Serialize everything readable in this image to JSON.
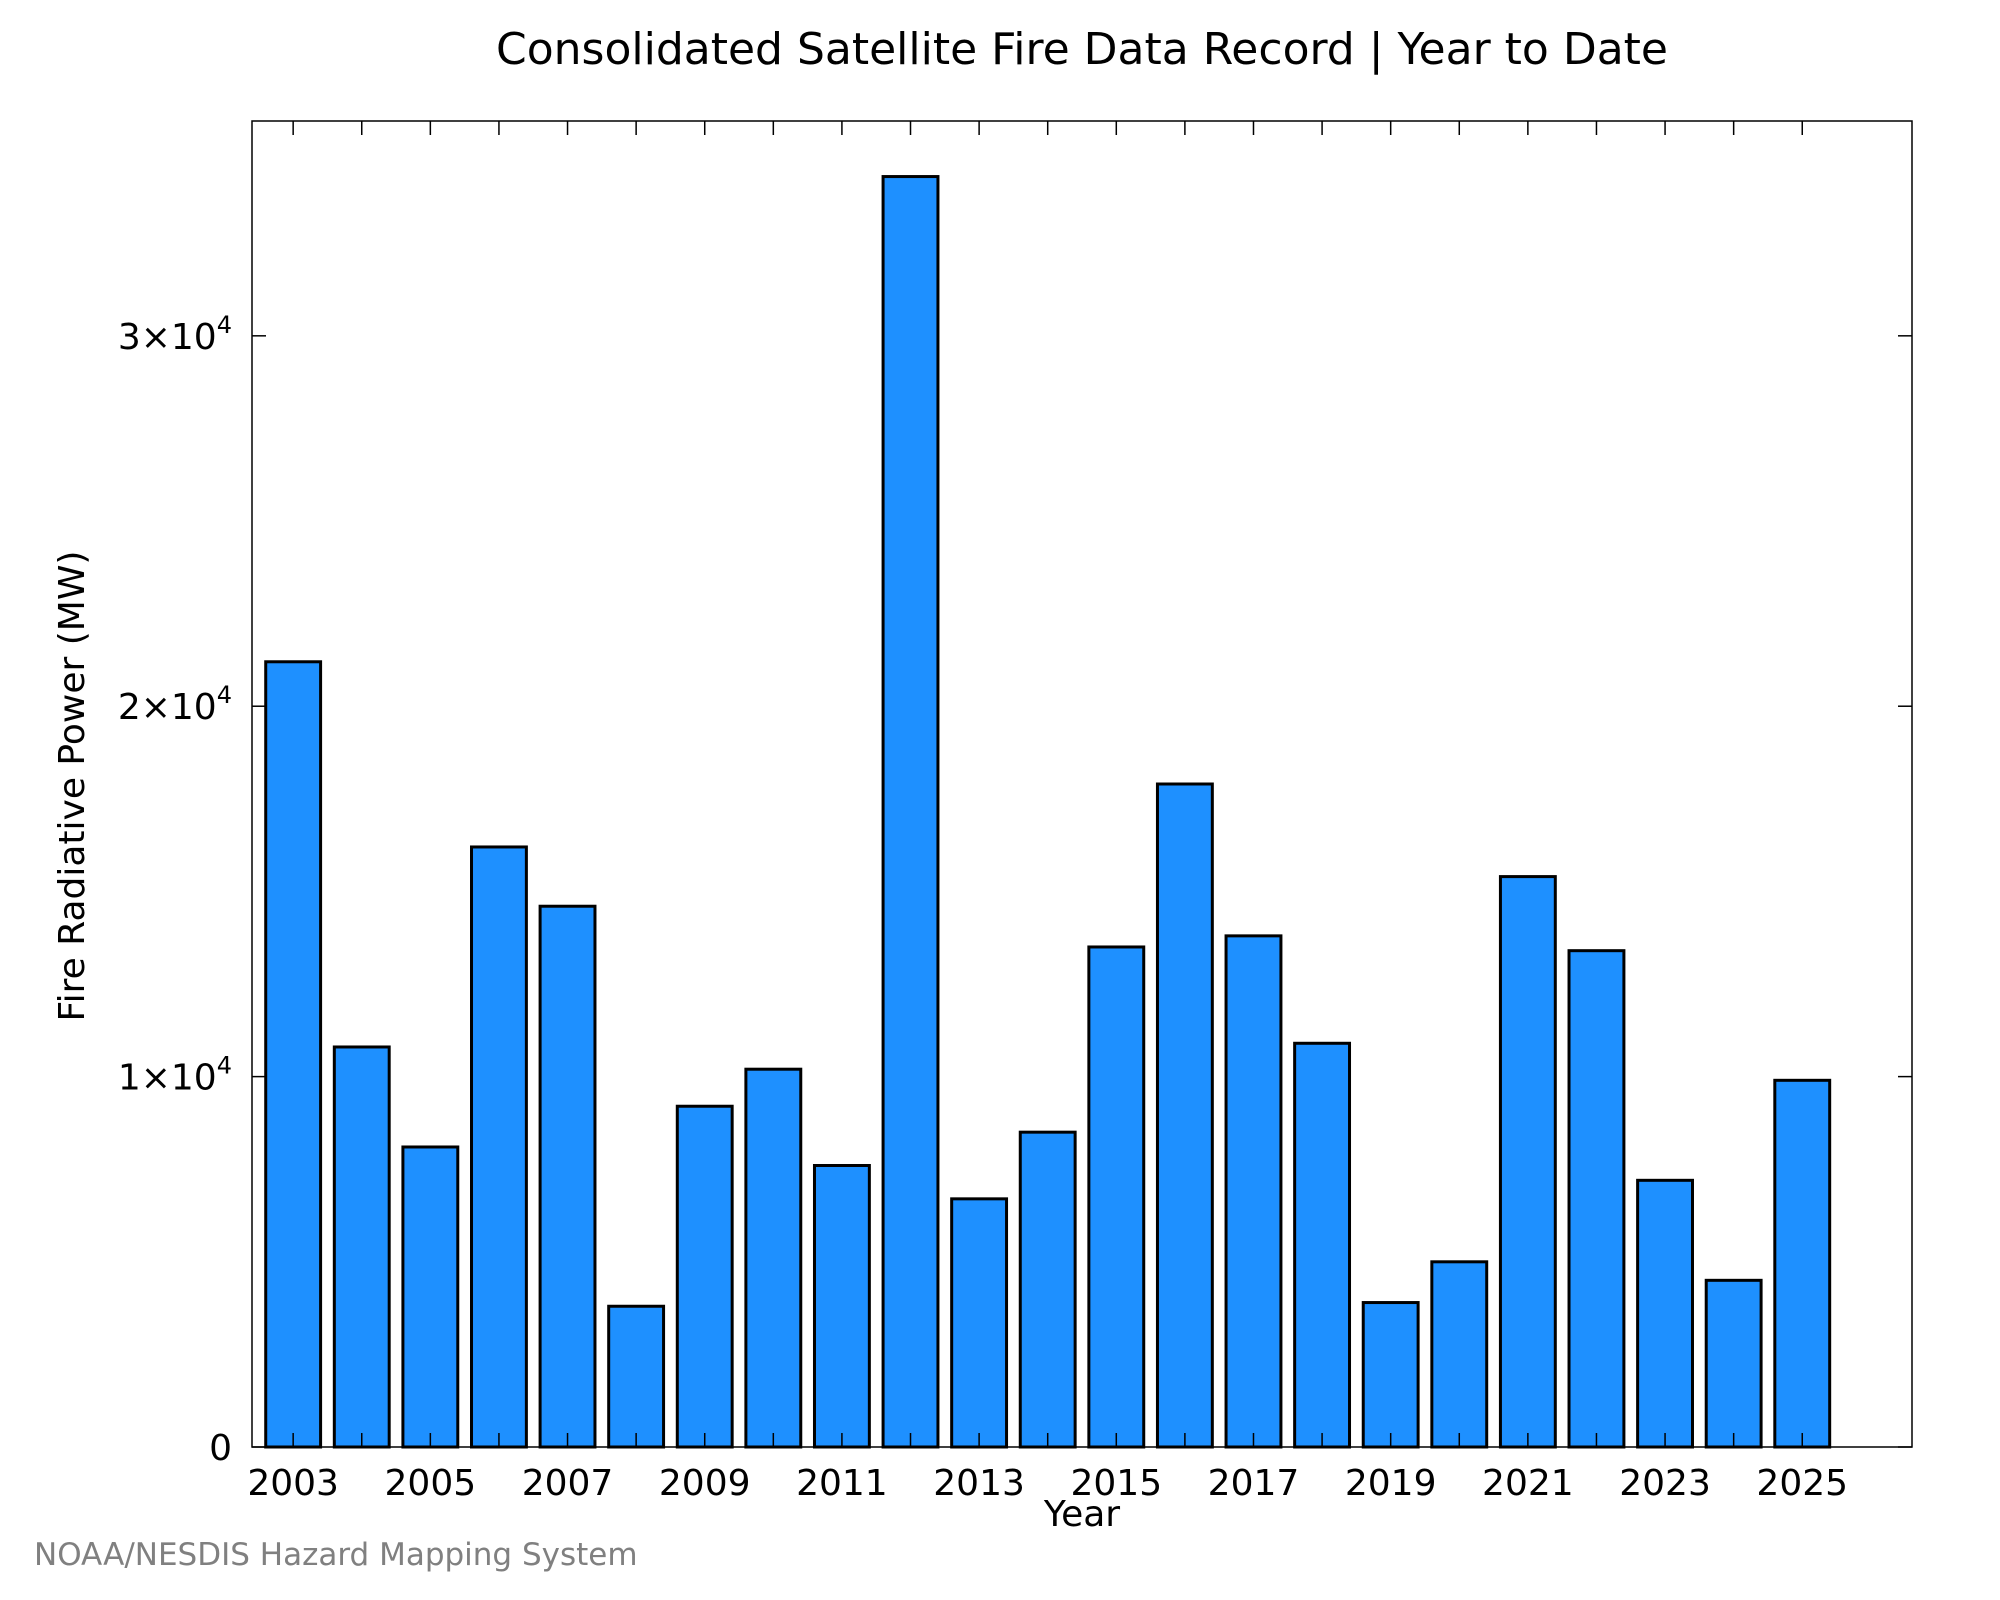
{
  "chart_data": {
    "type": "bar",
    "title": "Consolidated Satellite Fire Data Record | Year to Date",
    "xlabel": "Year",
    "ylabel": "Fire Radiative Power (MW)",
    "categories": [
      2003,
      2004,
      2005,
      2006,
      2007,
      2008,
      2009,
      2010,
      2011,
      2012,
      2013,
      2014,
      2015,
      2016,
      2017,
      2018,
      2019,
      2020,
      2021,
      2022,
      2023,
      2024,
      2025
    ],
    "values": [
      21200,
      10800,
      8100,
      16200,
      14600,
      3800,
      9200,
      10200,
      7600,
      34300,
      6700,
      8500,
      13500,
      17900,
      13800,
      10900,
      3900,
      5000,
      15400,
      13400,
      7200,
      4500,
      9900
    ],
    "x_tick_labels": [
      "2003",
      "2005",
      "2007",
      "2009",
      "2011",
      "2013",
      "2015",
      "2017",
      "2019",
      "2021",
      "2023",
      "2025"
    ],
    "y_ticks": [
      {
        "value": 0,
        "mantissa": "0",
        "exponent": ""
      },
      {
        "value": 10000,
        "mantissa": "1×10",
        "exponent": "4"
      },
      {
        "value": 20000,
        "mantissa": "2×10",
        "exponent": "4"
      },
      {
        "value": 30000,
        "mantissa": "3×10",
        "exponent": "4"
      }
    ],
    "ylim": [
      0,
      35800
    ],
    "xlim": [
      2002.4,
      2026.6
    ],
    "bar_color": "#1e90ff",
    "grid": false,
    "legend": "none"
  },
  "footer": "NOAA/NESDIS Hazard Mapping System"
}
